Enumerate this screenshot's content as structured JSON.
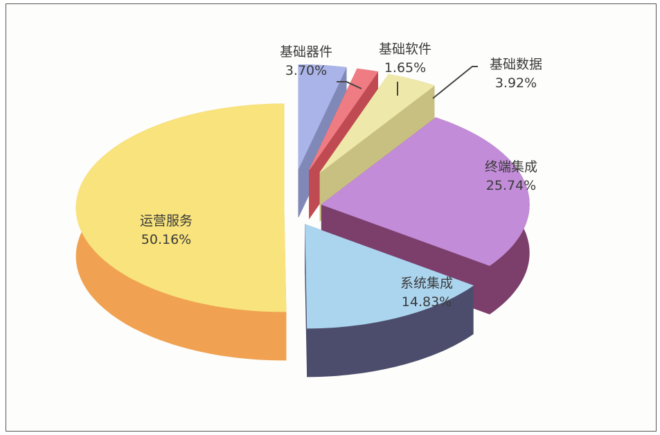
{
  "chart_data": {
    "type": "pie",
    "style": "3d-exploded",
    "title": "",
    "categories": [
      "基础器件",
      "基础软件",
      "基础数据",
      "终端集成",
      "系统集成",
      "运营服务"
    ],
    "values": [
      3.7,
      1.65,
      3.92,
      25.74,
      14.83,
      50.16
    ],
    "value_labels": [
      "3.70%",
      "1.65%",
      "3.92%",
      "25.74%",
      "14.83%",
      "50.16%"
    ],
    "top_colors": [
      "#aab4e8",
      "#ee7c82",
      "#eee8aa",
      "#c28cd8",
      "#abd4ee",
      "#f8e37c"
    ],
    "side_colors": [
      "#8088b8",
      "#c04a52",
      "#c8c080",
      "#7c3f6c",
      "#4c4d6c",
      "#f0a252"
    ],
    "legend": "none"
  }
}
